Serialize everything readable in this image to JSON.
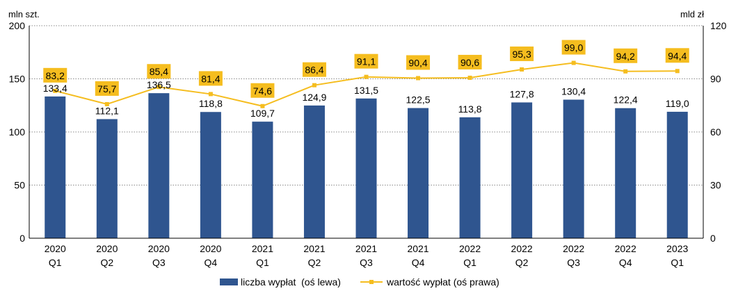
{
  "chart_data": {
    "type": "bar",
    "y_left_unit": "mln szt.",
    "y_right_unit": "mld zł",
    "ylim_left": [
      0,
      200
    ],
    "ylim_right": [
      0,
      120
    ],
    "yticks_left": [
      "0",
      "50",
      "100",
      "150",
      "200"
    ],
    "yticks_right": [
      "0",
      "30",
      "60",
      "90",
      "120"
    ],
    "categories": [
      [
        "2020",
        "Q1"
      ],
      [
        "2020",
        "Q2"
      ],
      [
        "2020",
        "Q3"
      ],
      [
        "2020",
        "Q4"
      ],
      [
        "2021",
        "Q1"
      ],
      [
        "2021",
        "Q2"
      ],
      [
        "2021",
        "Q3"
      ],
      [
        "2021",
        "Q4"
      ],
      [
        "2022",
        "Q1"
      ],
      [
        "2022",
        "Q2"
      ],
      [
        "2022",
        "Q3"
      ],
      [
        "2022",
        "Q4"
      ],
      [
        "2023",
        "Q1"
      ]
    ],
    "series": [
      {
        "name": "liczba wypłat  (oś lewa)",
        "type": "bar",
        "axis": "left",
        "color": "#2f558f",
        "values": [
          133.4,
          112.1,
          136.5,
          118.8,
          109.7,
          124.9,
          131.5,
          122.5,
          113.8,
          127.8,
          130.4,
          122.4,
          119.0
        ],
        "labels": [
          "133,4",
          "112,1",
          "136,5",
          "118,8",
          "109,7",
          "124,9",
          "131,5",
          "122,5",
          "113,8",
          "127,8",
          "130,4",
          "122,4",
          "119,0"
        ]
      },
      {
        "name": "wartość wypłat (oś prawa)",
        "type": "line",
        "axis": "right",
        "color": "#f5bd1f",
        "values": [
          83.2,
          75.7,
          85.4,
          81.4,
          74.6,
          86.4,
          91.1,
          90.4,
          90.6,
          95.3,
          99.0,
          94.2,
          94.4
        ],
        "labels": [
          "83,2",
          "75,7",
          "85,4",
          "81,4",
          "74,6",
          "86,4",
          "91,1",
          "90,4",
          "90,6",
          "95,3",
          "99,0",
          "94,2",
          "94,4"
        ]
      }
    ],
    "grid": "dotted horizontal",
    "legend_position": "bottom"
  }
}
